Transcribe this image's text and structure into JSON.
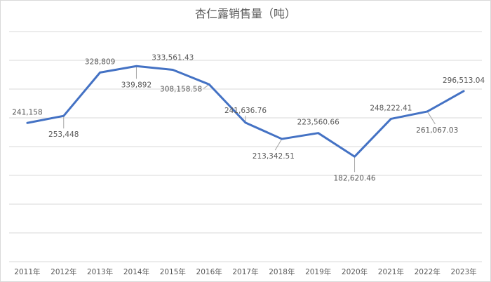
{
  "chart_data": {
    "type": "line",
    "title": "杏仁露销售量（吨）",
    "xlabel": "",
    "ylabel": "",
    "grid": true,
    "legend": "none",
    "categories": [
      "2011年",
      "2012年",
      "2013年",
      "2014年",
      "2015年",
      "2016年",
      "2017年",
      "2018年",
      "2019年",
      "2020年",
      "2021年",
      "2022年",
      "2023年"
    ],
    "series": [
      {
        "name": "杏仁露销售量（吨）",
        "color": "#4472c4",
        "values": [
          241158,
          253448,
          328809,
          339892,
          333561.43,
          308158.58,
          241636.76,
          213342.51,
          223560.66,
          182620.46,
          248222.41,
          261067.03,
          296513.04
        ],
        "labels": [
          "241,158",
          "253,448",
          "328,809",
          "339,892",
          "333,561.43",
          "308,158.58",
          "241,636.76",
          "213,342.51",
          "223,560.66",
          "182,620.46",
          "248,222.41",
          "261,067.03",
          "296,513.04"
        ]
      }
    ],
    "ylim": [
      0,
      400000
    ]
  },
  "title": "杏仁露销售量（吨）"
}
